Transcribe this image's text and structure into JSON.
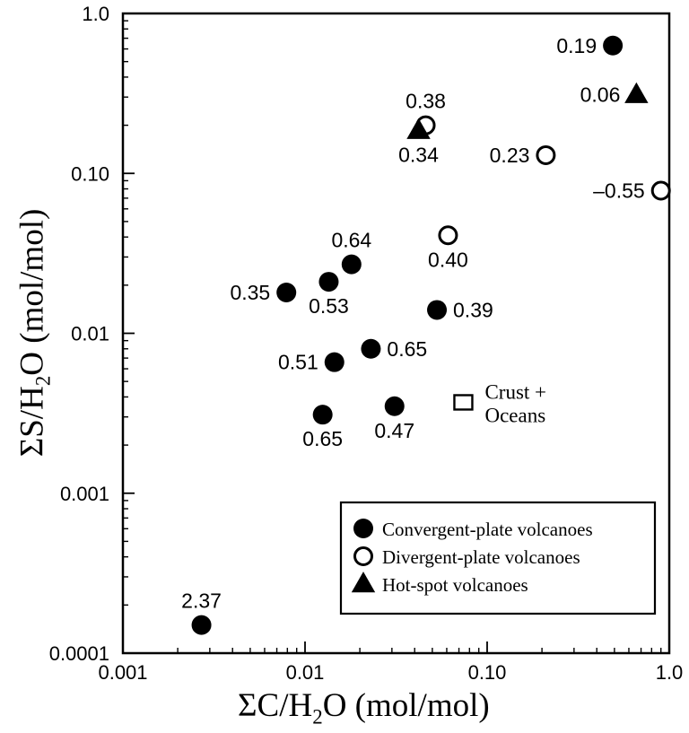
{
  "chart_data": {
    "type": "scatter",
    "xscale": "log",
    "yscale": "log",
    "xlim": [
      0.001,
      1.0
    ],
    "ylim": [
      0.0001,
      1.0
    ],
    "xlabel": {
      "pre": "ΣC/H",
      "sub": "2",
      "post": "O (mol/mol)"
    },
    "ylabel": {
      "pre": "ΣS/H",
      "sub": "2",
      "post": "O (mol/mol)"
    },
    "xticks": [
      {
        "value": 0.001,
        "label": "0.001"
      },
      {
        "value": 0.01,
        "label": "0.01"
      },
      {
        "value": 0.1,
        "label": "0.10"
      },
      {
        "value": 1.0,
        "label": "1.0"
      }
    ],
    "yticks": [
      {
        "value": 0.0001,
        "label": "0.0001"
      },
      {
        "value": 0.001,
        "label": "0.001"
      },
      {
        "value": 0.01,
        "label": "0.01"
      },
      {
        "value": 0.1,
        "label": "0.10"
      },
      {
        "value": 1.0,
        "label": "1.0"
      }
    ],
    "grid": false,
    "series": [
      {
        "name": "Convergent-plate volcanoes",
        "marker": "filled-circle",
        "points": [
          {
            "x": 0.49,
            "y": 0.63,
            "label": "0.19",
            "label_side": "left"
          },
          {
            "x": 0.0079,
            "y": 0.018,
            "label": "0.35",
            "label_side": "left"
          },
          {
            "x": 0.0135,
            "y": 0.021,
            "label": "0.53",
            "label_side": "below"
          },
          {
            "x": 0.018,
            "y": 0.027,
            "label": "0.64",
            "label_side": "above"
          },
          {
            "x": 0.053,
            "y": 0.014,
            "label": "0.39",
            "label_side": "right"
          },
          {
            "x": 0.0145,
            "y": 0.0066,
            "label": "0.51",
            "label_side": "left"
          },
          {
            "x": 0.023,
            "y": 0.008,
            "label": "0.65",
            "label_side": "right"
          },
          {
            "x": 0.0125,
            "y": 0.0031,
            "label": "0.65",
            "label_side": "below"
          },
          {
            "x": 0.031,
            "y": 0.0035,
            "label": "0.47",
            "label_side": "below"
          },
          {
            "x": 0.0027,
            "y": 0.00015,
            "label": "2.37",
            "label_side": "above"
          }
        ]
      },
      {
        "name": "Divergent-plate volcanoes",
        "marker": "open-circle",
        "points": [
          {
            "x": 0.046,
            "y": 0.2,
            "label": "0.38",
            "label_side": "above"
          },
          {
            "x": 0.21,
            "y": 0.13,
            "label": "0.23",
            "label_side": "left"
          },
          {
            "x": 0.9,
            "y": 0.078,
            "label": "–0.55",
            "label_side": "left"
          },
          {
            "x": 0.061,
            "y": 0.041,
            "label": "0.40",
            "label_side": "below"
          }
        ]
      },
      {
        "name": "Hot-spot volcanoes",
        "marker": "filled-triangle",
        "points": [
          {
            "x": 0.042,
            "y": 0.185,
            "label": "0.34",
            "label_side": "below"
          },
          {
            "x": 0.66,
            "y": 0.31,
            "label": "0.06",
            "label_side": "left"
          }
        ]
      }
    ],
    "annotations": [
      {
        "type": "open-square",
        "x": 0.074,
        "y": 0.0037,
        "lines": [
          "Crust +",
          "Oceans"
        ]
      }
    ],
    "legend": {
      "placement": "bottom-right",
      "entries": [
        {
          "marker": "filled-circle",
          "label": "Convergent-plate volcanoes"
        },
        {
          "marker": "open-circle",
          "label": "Divergent-plate volcanoes"
        },
        {
          "marker": "filled-triangle",
          "label": "Hot-spot volcanoes"
        }
      ]
    }
  }
}
